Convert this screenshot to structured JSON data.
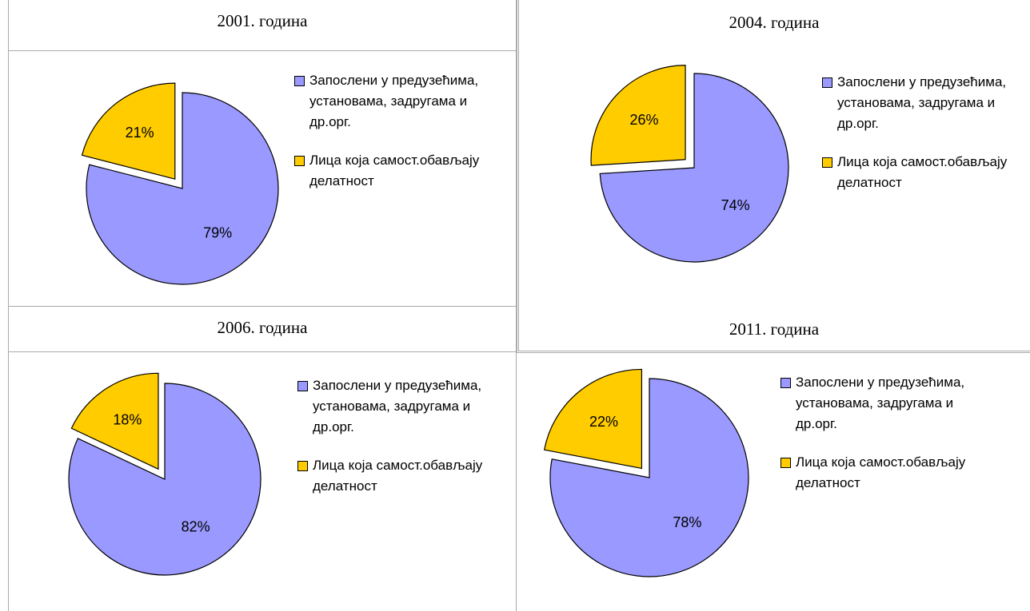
{
  "chart_data": [
    {
      "type": "pie",
      "title": "2001. година",
      "categories": [
        "Запослени у предузећима, установама, задругама и др.орг.",
        "Лица која самост.обављају делатност"
      ],
      "values": [
        79,
        21
      ],
      "value_labels": [
        "79%",
        "21%"
      ],
      "colors": [
        "#9999ff",
        "#ffcc00"
      ]
    },
    {
      "type": "pie",
      "title": "2004. година",
      "categories": [
        "Запослени у предузећима, установама, задругама и др.орг.",
        "Лица која самост.обављају делатност"
      ],
      "values": [
        74,
        26
      ],
      "value_labels": [
        "74%",
        "26%"
      ],
      "colors": [
        "#9999ff",
        "#ffcc00"
      ]
    },
    {
      "type": "pie",
      "title": "2006. година",
      "categories": [
        "Запослени у предузећима, установама, задругама и др.орг.",
        "Лица која самост.обављају делатност"
      ],
      "values": [
        82,
        18
      ],
      "value_labels": [
        "82%",
        "18%"
      ],
      "colors": [
        "#9999ff",
        "#ffcc00"
      ]
    },
    {
      "type": "pie",
      "title": "2011. година",
      "categories": [
        "Запослени у предузећима, установама, задругама и др.орг.",
        "Лица која самост.обављају делатност"
      ],
      "values": [
        78,
        22
      ],
      "value_labels": [
        "78%",
        "22%"
      ],
      "colors": [
        "#9999ff",
        "#ffcc00"
      ]
    }
  ]
}
